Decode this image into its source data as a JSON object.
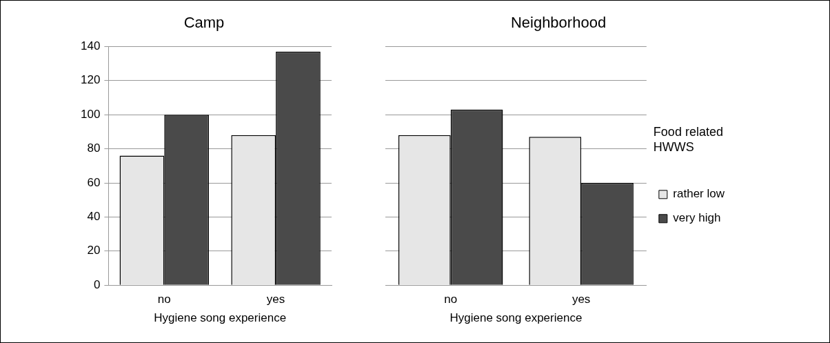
{
  "chart_data": [
    {
      "type": "bar",
      "title": "Camp",
      "xlabel": "Hygiene song experience",
      "categories": [
        "no",
        "yes"
      ],
      "series": [
        {
          "color": "#e6e6e6",
          "values": [
            76,
            88
          ]
        },
        {
          "color": "#4a4a4a",
          "values": [
            100,
            137
          ]
        }
      ],
      "ylim": [
        0,
        140
      ],
      "yticks": [
        0,
        20,
        40,
        60,
        80,
        100,
        120,
        140
      ],
      "grid": "y",
      "legend": false
    },
    {
      "type": "bar",
      "title": "Neighborhood",
      "xlabel": "Hygiene song experience",
      "categories": [
        "no",
        "yes"
      ],
      "series": [
        {
          "name": "rather low",
          "color": "#e6e6e6",
          "values": [
            88,
            87
          ]
        },
        {
          "name": "very high",
          "color": "#4a4a4a",
          "values": [
            103,
            60
          ]
        }
      ],
      "ylim": [
        0,
        140
      ],
      "yticks": [
        0,
        20,
        40,
        60,
        80,
        100,
        120,
        140
      ],
      "grid": "y",
      "legend": "right",
      "legend_title": "Food related HWWS",
      "tick_labels": "x"
    }
  ]
}
